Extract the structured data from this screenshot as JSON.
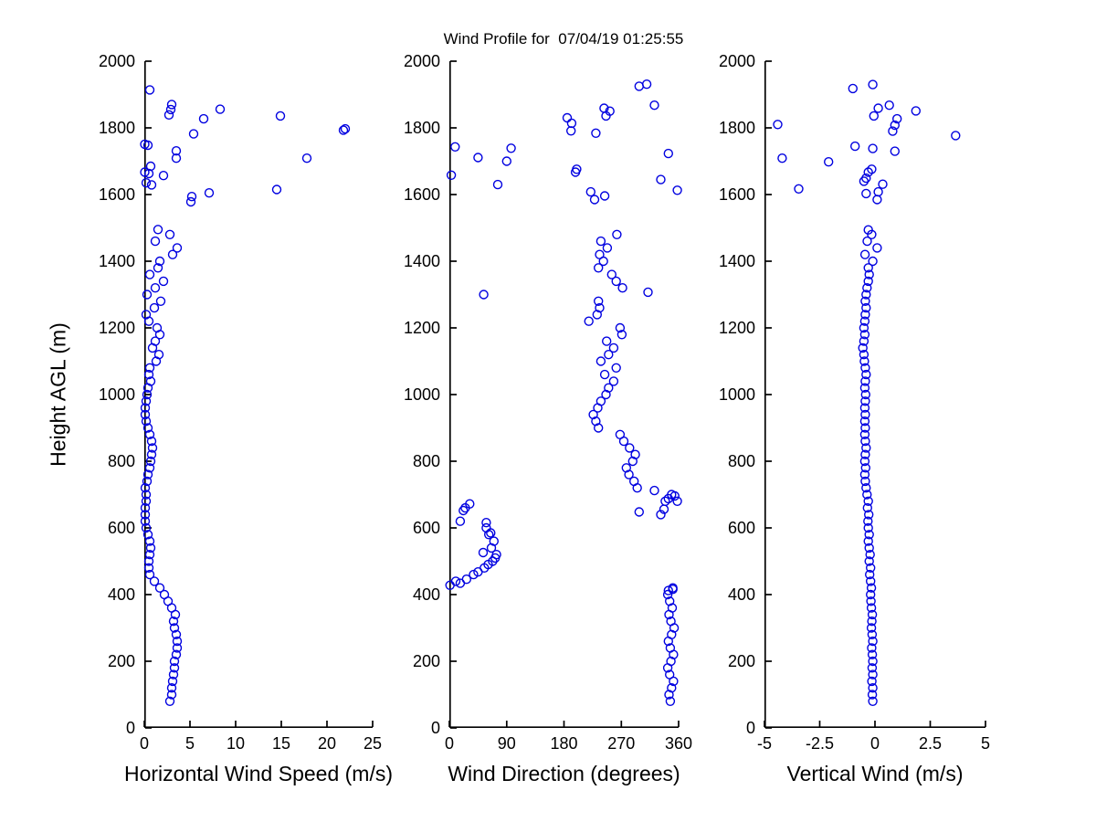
{
  "title": "Wind Profile for  07/04/19 01:25:55",
  "y_axis_label": "Height AGL (m)",
  "colors": {
    "marker": "#0000e0",
    "axis": "#000000",
    "background": "#ffffff"
  },
  "chart_data": [
    {
      "type": "scatter",
      "xlabel": "Horizontal Wind Speed (m/s)",
      "xlim": [
        0,
        25
      ],
      "xticks": [
        0,
        5,
        10,
        15,
        20,
        25
      ],
      "xtick_labels": [
        "0",
        "5",
        "10",
        "15",
        "20",
        "25"
      ],
      "ylim": [
        0,
        2000
      ],
      "yticks": [
        0,
        200,
        400,
        600,
        800,
        1000,
        1200,
        1400,
        1600,
        1800,
        2000
      ],
      "ytick_labels": [
        "0",
        "200",
        "400",
        "600",
        "800",
        "1000",
        "1200",
        "1400",
        "1600",
        "1800",
        "2000"
      ],
      "grid": false,
      "legend": null,
      "points": [
        [
          2.8,
          80
        ],
        [
          3.0,
          100
        ],
        [
          3.0,
          120
        ],
        [
          3.1,
          140
        ],
        [
          3.2,
          160
        ],
        [
          3.3,
          180
        ],
        [
          3.3,
          200
        ],
        [
          3.5,
          220
        ],
        [
          3.6,
          240
        ],
        [
          3.6,
          260
        ],
        [
          3.5,
          280
        ],
        [
          3.3,
          300
        ],
        [
          3.2,
          320
        ],
        [
          3.4,
          340
        ],
        [
          3.0,
          360
        ],
        [
          2.6,
          380
        ],
        [
          2.2,
          400
        ],
        [
          1.7,
          420
        ],
        [
          1.1,
          440
        ],
        [
          0.6,
          460
        ],
        [
          0.5,
          480
        ],
        [
          0.5,
          500
        ],
        [
          0.6,
          520
        ],
        [
          0.7,
          540
        ],
        [
          0.6,
          560
        ],
        [
          0.4,
          580
        ],
        [
          0.2,
          600
        ],
        [
          0.1,
          620
        ],
        [
          0.1,
          640
        ],
        [
          0.1,
          660
        ],
        [
          0.2,
          680
        ],
        [
          0.2,
          700
        ],
        [
          0.1,
          720
        ],
        [
          0.3,
          740
        ],
        [
          0.4,
          760
        ],
        [
          0.6,
          780
        ],
        [
          0.7,
          800
        ],
        [
          0.8,
          820
        ],
        [
          0.9,
          840
        ],
        [
          0.8,
          860
        ],
        [
          0.6,
          880
        ],
        [
          0.4,
          900
        ],
        [
          0.2,
          920
        ],
        [
          0.1,
          940
        ],
        [
          0.1,
          960
        ],
        [
          0.2,
          980
        ],
        [
          0.3,
          1000
        ],
        [
          0.4,
          1020
        ],
        [
          0.7,
          1040
        ],
        [
          0.5,
          1060
        ],
        [
          0.6,
          1080
        ],
        [
          1.3,
          1100
        ],
        [
          1.6,
          1120
        ],
        [
          0.9,
          1140
        ],
        [
          1.2,
          1160
        ],
        [
          1.7,
          1180
        ],
        [
          1.4,
          1200
        ],
        [
          0.5,
          1220
        ],
        [
          0.2,
          1240
        ],
        [
          1.1,
          1260
        ],
        [
          1.8,
          1280
        ],
        [
          0.3,
          1300
        ],
        [
          1.2,
          1320
        ],
        [
          2.1,
          1340
        ],
        [
          0.6,
          1360
        ],
        [
          1.5,
          1380
        ],
        [
          1.7,
          1400
        ],
        [
          3.1,
          1420
        ],
        [
          3.6,
          1440
        ],
        [
          1.2,
          1460
        ],
        [
          2.8,
          1480
        ],
        [
          1.5,
          1495
        ],
        [
          5.1,
          1578
        ],
        [
          5.2,
          1594
        ],
        [
          7.1,
          1605
        ],
        [
          14.5,
          1615
        ],
        [
          0.8,
          1629
        ],
        [
          0.2,
          1635
        ],
        [
          2.1,
          1657
        ],
        [
          0.5,
          1663
        ],
        [
          0.05,
          1667
        ],
        [
          0.7,
          1685
        ],
        [
          17.8,
          1709
        ],
        [
          3.5,
          1709
        ],
        [
          3.5,
          1731
        ],
        [
          0.4,
          1748
        ],
        [
          0.05,
          1751
        ],
        [
          5.4,
          1782
        ],
        [
          21.8,
          1793
        ],
        [
          22.0,
          1797
        ],
        [
          6.5,
          1827
        ],
        [
          14.9,
          1836
        ],
        [
          2.7,
          1839
        ],
        [
          2.9,
          1855
        ],
        [
          8.3,
          1856
        ],
        [
          3.0,
          1870
        ],
        [
          0.6,
          1914
        ]
      ]
    },
    {
      "type": "scatter",
      "xlabel": "Wind Direction (degrees)",
      "xlim": [
        0,
        360
      ],
      "xticks": [
        0,
        90,
        180,
        270,
        360
      ],
      "xtick_labels": [
        "0",
        "90",
        "180",
        "270",
        "360"
      ],
      "ylim": [
        0,
        2000
      ],
      "yticks": [
        0,
        200,
        400,
        600,
        800,
        1000,
        1200,
        1400,
        1600,
        1800,
        2000
      ],
      "ytick_labels": [
        "0",
        "200",
        "400",
        "600",
        "800",
        "1000",
        "1200",
        "1400",
        "1600",
        "1800",
        "2000"
      ],
      "grid": false,
      "legend": null,
      "points": [
        [
          347,
          80
        ],
        [
          345,
          100
        ],
        [
          349,
          120
        ],
        [
          352,
          140
        ],
        [
          346,
          160
        ],
        [
          343,
          180
        ],
        [
          348,
          200
        ],
        [
          352,
          220
        ],
        [
          347,
          240
        ],
        [
          344,
          260
        ],
        [
          349,
          280
        ],
        [
          353,
          300
        ],
        [
          348,
          320
        ],
        [
          345,
          340
        ],
        [
          350,
          360
        ],
        [
          346,
          380
        ],
        [
          343,
          400
        ],
        [
          351,
          420
        ],
        [
          10,
          440
        ],
        [
          38,
          460
        ],
        [
          55,
          480
        ],
        [
          68,
          500
        ],
        [
          74,
          520
        ],
        [
          66,
          540
        ],
        [
          70,
          560
        ],
        [
          62,
          580
        ],
        [
          58,
          600
        ],
        [
          17,
          620
        ],
        [
          332,
          640
        ],
        [
          25,
          660
        ],
        [
          339,
          680
        ],
        [
          349,
          700
        ],
        [
          295,
          720
        ],
        [
          290,
          740
        ],
        [
          282,
          760
        ],
        [
          278,
          780
        ],
        [
          288,
          800
        ],
        [
          292,
          820
        ],
        [
          283,
          840
        ],
        [
          274,
          860
        ],
        [
          268,
          880
        ],
        [
          234,
          900
        ],
        [
          230,
          920
        ],
        [
          226,
          940
        ],
        [
          233,
          960
        ],
        [
          238,
          980
        ],
        [
          246,
          1000
        ],
        [
          250,
          1020
        ],
        [
          258,
          1040
        ],
        [
          244,
          1060
        ],
        [
          262,
          1080
        ],
        [
          238,
          1100
        ],
        [
          250,
          1120
        ],
        [
          258,
          1140
        ],
        [
          247,
          1160
        ],
        [
          271,
          1180
        ],
        [
          268,
          1200
        ],
        [
          219,
          1220
        ],
        [
          232,
          1240
        ],
        [
          236,
          1260
        ],
        [
          234,
          1280
        ],
        [
          54,
          1300
        ],
        [
          272,
          1320
        ],
        [
          262,
          1340
        ],
        [
          255,
          1360
        ],
        [
          234,
          1380
        ],
        [
          242,
          1400
        ],
        [
          236,
          1420
        ],
        [
          248,
          1440
        ],
        [
          238,
          1460
        ],
        [
          263,
          1480
        ],
        [
          344,
          412
        ],
        [
          351,
          416
        ],
        [
          1,
          428
        ],
        [
          17,
          434
        ],
        [
          27,
          446
        ],
        [
          45,
          468
        ],
        [
          61,
          490
        ],
        [
          72,
          510
        ],
        [
          53,
          526
        ],
        [
          65,
          585
        ],
        [
          58,
          616
        ],
        [
          298,
          648
        ],
        [
          22,
          652
        ],
        [
          337,
          656
        ],
        [
          32,
          672
        ],
        [
          358,
          680
        ],
        [
          344,
          688
        ],
        [
          354,
          696
        ],
        [
          322,
          712
        ],
        [
          312,
          1307
        ],
        [
          228,
          1585
        ],
        [
          244,
          1596
        ],
        [
          222,
          1608
        ],
        [
          358,
          1613
        ],
        [
          76,
          1630
        ],
        [
          332,
          1645
        ],
        [
          3,
          1658
        ],
        [
          198,
          1667
        ],
        [
          200,
          1676
        ],
        [
          90,
          1700
        ],
        [
          45,
          1711
        ],
        [
          344,
          1723
        ],
        [
          97,
          1739
        ],
        [
          9,
          1743
        ],
        [
          230,
          1784
        ],
        [
          191,
          1791
        ],
        [
          192,
          1814
        ],
        [
          185,
          1830
        ],
        [
          246,
          1836
        ],
        [
          252,
          1850
        ],
        [
          243,
          1859
        ],
        [
          322,
          1868
        ],
        [
          298,
          1925
        ],
        [
          310,
          1931
        ]
      ]
    },
    {
      "type": "scatter",
      "xlabel": "Vertical Wind (m/s)",
      "xlim": [
        -5,
        5
      ],
      "xticks": [
        -5,
        -2.5,
        0,
        2.5,
        5
      ],
      "xtick_labels": [
        "-5",
        "-2.5",
        "0",
        "2.5",
        "5"
      ],
      "ylim": [
        0,
        2000
      ],
      "yticks": [
        0,
        200,
        400,
        600,
        800,
        1000,
        1200,
        1400,
        1600,
        1800,
        2000
      ],
      "ytick_labels": [
        "0",
        "200",
        "400",
        "600",
        "800",
        "1000",
        "1200",
        "1400",
        "1600",
        "1800",
        "2000"
      ],
      "grid": false,
      "legend": null,
      "points": [
        [
          -0.1,
          80
        ],
        [
          -0.12,
          100
        ],
        [
          -0.1,
          120
        ],
        [
          -0.14,
          140
        ],
        [
          -0.1,
          160
        ],
        [
          -0.13,
          180
        ],
        [
          -0.1,
          200
        ],
        [
          -0.12,
          220
        ],
        [
          -0.15,
          240
        ],
        [
          -0.1,
          260
        ],
        [
          -0.13,
          280
        ],
        [
          -0.16,
          300
        ],
        [
          -0.14,
          320
        ],
        [
          -0.12,
          340
        ],
        [
          -0.16,
          360
        ],
        [
          -0.18,
          380
        ],
        [
          -0.2,
          400
        ],
        [
          -0.16,
          420
        ],
        [
          -0.2,
          440
        ],
        [
          -0.24,
          460
        ],
        [
          -0.2,
          480
        ],
        [
          -0.26,
          500
        ],
        [
          -0.22,
          520
        ],
        [
          -0.26,
          540
        ],
        [
          -0.3,
          560
        ],
        [
          -0.26,
          580
        ],
        [
          -0.3,
          600
        ],
        [
          -0.32,
          620
        ],
        [
          -0.28,
          640
        ],
        [
          -0.34,
          660
        ],
        [
          -0.3,
          680
        ],
        [
          -0.36,
          700
        ],
        [
          -0.4,
          720
        ],
        [
          -0.44,
          740
        ],
        [
          -0.46,
          760
        ],
        [
          -0.42,
          780
        ],
        [
          -0.46,
          800
        ],
        [
          -0.44,
          820
        ],
        [
          -0.4,
          840
        ],
        [
          -0.44,
          860
        ],
        [
          -0.46,
          880
        ],
        [
          -0.44,
          900
        ],
        [
          -0.46,
          920
        ],
        [
          -0.44,
          940
        ],
        [
          -0.46,
          960
        ],
        [
          -0.44,
          980
        ],
        [
          -0.42,
          1000
        ],
        [
          -0.46,
          1020
        ],
        [
          -0.44,
          1040
        ],
        [
          -0.4,
          1060
        ],
        [
          -0.44,
          1080
        ],
        [
          -0.48,
          1100
        ],
        [
          -0.5,
          1120
        ],
        [
          -0.55,
          1140
        ],
        [
          -0.5,
          1160
        ],
        [
          -0.46,
          1180
        ],
        [
          -0.5,
          1200
        ],
        [
          -0.46,
          1220
        ],
        [
          -0.44,
          1240
        ],
        [
          -0.4,
          1260
        ],
        [
          -0.44,
          1280
        ],
        [
          -0.4,
          1300
        ],
        [
          -0.36,
          1320
        ],
        [
          -0.3,
          1340
        ],
        [
          -0.26,
          1360
        ],
        [
          -0.3,
          1380
        ],
        [
          -0.1,
          1400
        ],
        [
          -0.45,
          1420
        ],
        [
          0.1,
          1440
        ],
        [
          -0.35,
          1460
        ],
        [
          -0.15,
          1480
        ],
        [
          -0.3,
          1494
        ],
        [
          0.1,
          1585
        ],
        [
          -0.4,
          1603
        ],
        [
          0.15,
          1608
        ],
        [
          -3.45,
          1617
        ],
        [
          0.35,
          1631
        ],
        [
          -0.5,
          1640
        ],
        [
          -0.4,
          1649
        ],
        [
          -0.3,
          1667
        ],
        [
          -0.15,
          1676
        ],
        [
          -2.1,
          1698
        ],
        [
          -4.2,
          1709
        ],
        [
          0.9,
          1730
        ],
        [
          -0.1,
          1738
        ],
        [
          -0.9,
          1745
        ],
        [
          3.65,
          1777
        ],
        [
          0.8,
          1790
        ],
        [
          0.9,
          1808
        ],
        [
          -4.4,
          1810
        ],
        [
          1.0,
          1827
        ],
        [
          -0.05,
          1836
        ],
        [
          1.85,
          1851
        ],
        [
          0.15,
          1859
        ],
        [
          0.65,
          1868
        ],
        [
          -1.0,
          1918
        ],
        [
          -0.1,
          1930
        ]
      ]
    }
  ]
}
